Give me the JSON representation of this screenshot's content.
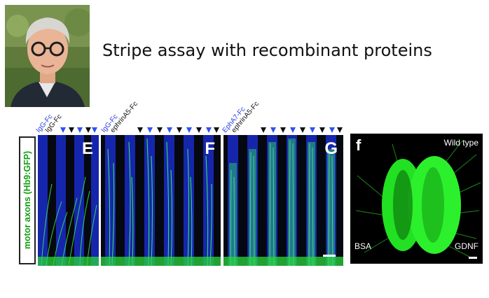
{
  "slide": {
    "title": "Stripe assay with recombinant proteins",
    "photo_icon": "portrait-photo"
  },
  "figure": {
    "y_axis_label": "motor axons (Hb9:GFP)",
    "panels": [
      {
        "letter": "E",
        "label_blue": "IgG-Fc",
        "label_black": "IgG-Fc"
      },
      {
        "letter": "F",
        "label_blue": "IgG-Fc",
        "label_black": "ephrinA5-Fc"
      },
      {
        "letter": "G",
        "label_blue": "EphA7-Fc",
        "label_black": "ephrinA5-Fc"
      }
    ],
    "panel_f": {
      "letter": "f",
      "top_right": "Wild type",
      "bottom_left": "BSA",
      "bottom_right": "GDNF"
    },
    "colors": {
      "stripe_blue": "#1c2fd0",
      "axon_green": "#33ff33",
      "label_green": "#12a012",
      "label_blue": "#2a3fe0"
    }
  }
}
